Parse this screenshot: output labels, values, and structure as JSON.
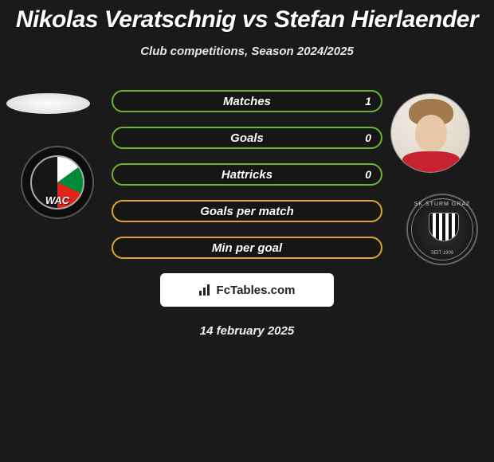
{
  "title": "Nikolas Veratschnig vs Stefan Hierlaender",
  "subtitle": "Club competitions, Season 2024/2025",
  "date": "14 february 2025",
  "fctables_label": "FcTables.com",
  "colors": {
    "bar_border_green": "#6ab42e",
    "bar_border_orange": "#e0a426",
    "background": "#1a1a1a"
  },
  "player_left": {
    "name": "Nikolas Veratschnig",
    "club": "WAC"
  },
  "player_right": {
    "name": "Stefan Hierlaender",
    "club": "SK Sturm Graz"
  },
  "stats": [
    {
      "label": "Matches",
      "value": "1",
      "color": "green"
    },
    {
      "label": "Goals",
      "value": "0",
      "color": "green"
    },
    {
      "label": "Hattricks",
      "value": "0",
      "color": "green"
    },
    {
      "label": "Goals per match",
      "value": "",
      "color": "orange"
    },
    {
      "label": "Min per goal",
      "value": "",
      "color": "orange"
    }
  ]
}
